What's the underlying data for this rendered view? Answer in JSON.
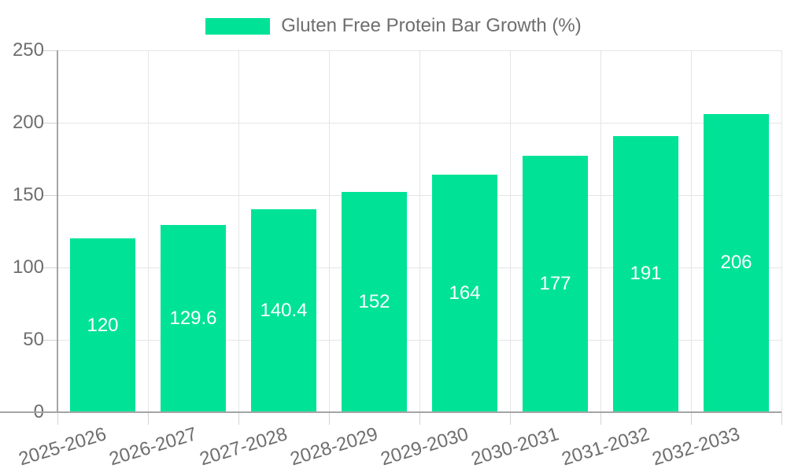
{
  "chart_data": {
    "type": "bar",
    "title": "Gluten Free Protein Bar Growth (%)",
    "legend_entries": [
      "Gluten Free Protein Bar Growth (%)"
    ],
    "legend_position": "top",
    "categories": [
      "2025-2026",
      "2026-2027",
      "2027-2028",
      "2028-2029",
      "2029-2030",
      "2030-2031",
      "2031-2032",
      "2032-2033"
    ],
    "values": [
      120,
      129.6,
      140.4,
      152,
      164,
      177,
      191,
      206
    ],
    "value_labels": [
      "120",
      "129.6",
      "140.4",
      "152",
      "164",
      "177",
      "191",
      "206"
    ],
    "xlabel": "",
    "ylabel": "",
    "ylim": [
      0,
      250
    ],
    "yticks": [
      0,
      50,
      100,
      150,
      200,
      250
    ],
    "grid": true,
    "colors": {
      "bar": "#00E396",
      "grid": "#e5e5e5",
      "axis": "#a4a4a4",
      "tick": "#d2d2d2",
      "axis_text": "#6e6e6e",
      "value_label_text": "#ffffff",
      "background": "#ffffff"
    }
  }
}
